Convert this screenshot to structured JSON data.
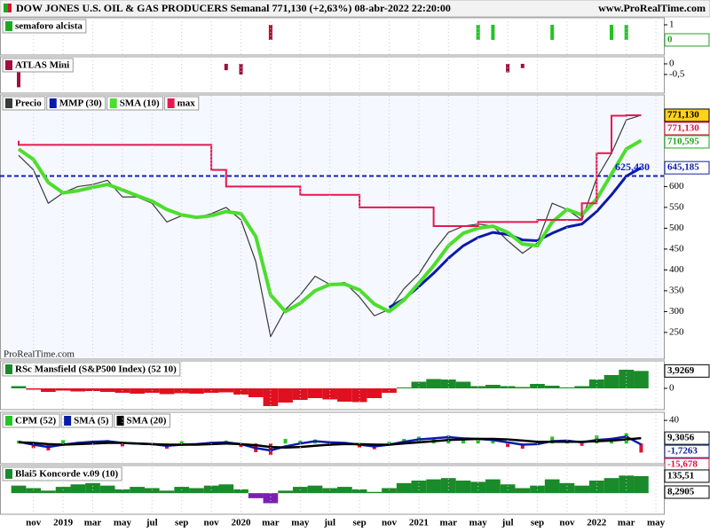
{
  "header": {
    "title": "DOW JONES U.S. OIL & GAS PRODUCERS Semanal 771,130 (+2,63%) 08-abr-2022 22:20:00",
    "site": "www.ProRealTime.com",
    "watermark": "ProRealTime.com"
  },
  "chart_data": [
    {
      "type": "bar",
      "ylim": [
        -1,
        1.47
      ],
      "yticks": [
        1
      ],
      "value_boxes": [
        {
          "value": 0,
          "color": "#22a022"
        }
      ],
      "series": [
        {
          "name": "semaforo alcista",
          "color": "#1aaa1a",
          "values": [
            null,
            null,
            null,
            null,
            null,
            null,
            null,
            null,
            null,
            null,
            null,
            null,
            null,
            null,
            null,
            null,
            null,
            1,
            null,
            null,
            null,
            null,
            null,
            null,
            null,
            null,
            null,
            null,
            null,
            null,
            null,
            1,
            1,
            null,
            null,
            null,
            1,
            null,
            null,
            null,
            1,
            1,
            null,
            null
          ],
          "colors": [
            null,
            null,
            null,
            null,
            null,
            null,
            null,
            null,
            null,
            null,
            null,
            null,
            null,
            null,
            null,
            null,
            null,
            "#b0102a",
            null,
            null,
            null,
            null,
            null,
            null,
            null,
            null,
            null,
            null,
            null,
            null,
            null,
            "#22c422",
            "#22c422",
            null,
            null,
            null,
            "#22c422",
            null,
            null,
            null,
            "#22c422",
            "#22c422",
            null,
            null
          ]
        }
      ]
    },
    {
      "type": "bar",
      "ylim": [
        -1.375,
        0.333
      ],
      "yticks": [
        0,
        {
          "value": -0.5,
          "label": "-0,5"
        }
      ],
      "series": [
        {
          "name": "ATLAS Mini",
          "color": "#a0103a",
          "values": [
            -1.1,
            -0.4,
            null,
            null,
            null,
            null,
            null,
            null,
            null,
            null,
            null,
            null,
            null,
            null,
            -0.3,
            -0.5,
            null,
            null,
            null,
            null,
            null,
            null,
            null,
            null,
            null,
            null,
            null,
            null,
            null,
            null,
            null,
            null,
            null,
            -0.4,
            -0.2,
            null,
            null,
            null,
            null,
            null,
            null,
            null,
            null,
            null
          ]
        }
      ]
    },
    {
      "type": "line",
      "ylim": [
        186,
        820
      ],
      "yticks": [
        250,
        300,
        350,
        400,
        450,
        500,
        550,
        600
      ],
      "categories": [
        null,
        "nov",
        null,
        "2019",
        null,
        "mar",
        null,
        "may",
        null,
        "jul",
        null,
        "sep",
        null,
        "nov",
        null,
        "2020",
        null,
        "mar",
        null,
        "may",
        null,
        "jul",
        null,
        "sep",
        null,
        "nov",
        null,
        "2021",
        null,
        "mar",
        null,
        "may",
        null,
        "jul",
        null,
        "sep",
        null,
        "nov",
        null,
        "2022",
        null,
        "mar",
        null,
        "may"
      ],
      "hline": {
        "value": 625.43,
        "label": "625,430",
        "color": "#1020c0"
      },
      "value_boxes": [
        {
          "value": 771.13,
          "label": "771,130",
          "color": "#000000",
          "bg": "#ffd21a"
        },
        {
          "value": 771.13,
          "label": "771,130",
          "color": "#e0103a"
        },
        {
          "value": 710.595,
          "label": "710,595",
          "color": "#18a818"
        },
        {
          "value": 645.185,
          "label": "645,185",
          "color": "#1020a0"
        }
      ],
      "series": [
        {
          "name": "Precio",
          "color": "#3a3a3a",
          "values": [
            675,
            640,
            560,
            585,
            600,
            605,
            615,
            575,
            575,
            560,
            515,
            530,
            525,
            535,
            550,
            520,
            420,
            240,
            305,
            340,
            385,
            365,
            370,
            335,
            290,
            305,
            355,
            390,
            445,
            490,
            505,
            510,
            505,
            470,
            440,
            465,
            560,
            545,
            520,
            620,
            680,
            760,
            771.13,
            null
          ]
        },
        {
          "name": "MMP (30)",
          "color": "#0a1aa8",
          "values": [
            null,
            null,
            null,
            null,
            null,
            null,
            null,
            null,
            null,
            null,
            null,
            null,
            null,
            null,
            null,
            null,
            null,
            null,
            null,
            null,
            null,
            null,
            null,
            null,
            null,
            310,
            330,
            360,
            392,
            428,
            458,
            478,
            490,
            485,
            472,
            470,
            488,
            503,
            510,
            540,
            580,
            625,
            645.185,
            null
          ]
        },
        {
          "name": "SMA (10)",
          "color": "#4ddd2e",
          "values": [
            690,
            665,
            610,
            585,
            590,
            598,
            605,
            592,
            578,
            565,
            545,
            532,
            526,
            530,
            540,
            535,
            480,
            340,
            300,
            320,
            350,
            365,
            366,
            352,
            318,
            300,
            328,
            368,
            410,
            458,
            488,
            500,
            505,
            490,
            462,
            458,
            515,
            545,
            532,
            570,
            630,
            690,
            710.595,
            null
          ]
        },
        {
          "name": "max",
          "type": "step",
          "color": "#e8174f",
          "values": [
            710,
            700,
            700,
            700,
            700,
            700,
            700,
            700,
            700,
            700,
            700,
            700,
            700,
            700,
            640,
            600,
            600,
            600,
            600,
            600,
            580,
            580,
            580,
            580,
            550,
            550,
            550,
            550,
            550,
            505,
            505,
            505,
            515,
            515,
            515,
            515,
            520,
            520,
            520,
            560,
            680,
            770,
            771.13,
            null
          ]
        }
      ]
    },
    {
      "type": "area",
      "ylim": [
        -4.8,
        6.2
      ],
      "yticks": [
        0
      ],
      "value_boxes": [
        {
          "value": 3.9269,
          "label": "3,9269",
          "color": "#000000"
        }
      ],
      "series": [
        {
          "name": "RSc Mansfield (S&P500 Index) (52 10)",
          "color": "#1a8a2a",
          "negative_color": "#e01020",
          "values": [
            0.5,
            -0.3,
            -0.8,
            -0.5,
            -0.7,
            -0.6,
            -0.8,
            -1,
            -1.2,
            -1,
            -1.3,
            -1.1,
            -1.2,
            -1,
            -0.9,
            -1.4,
            -2,
            -4,
            -3.2,
            -2.6,
            -2.2,
            -2.5,
            -3,
            -3.1,
            -2.2,
            -1,
            0.2,
            1.5,
            2.1,
            2,
            1.5,
            0.5,
            0.8,
            0.5,
            0.3,
            1,
            0.6,
            0.2,
            0.5,
            2,
            3,
            4.2,
            3.9269,
            null
          ]
        }
      ]
    },
    {
      "type": "bar",
      "ylim": [
        -35,
        54
      ],
      "yticks": [
        40
      ],
      "value_boxes": [
        {
          "value": 9.3056,
          "label": "9,3056",
          "color": "#000000"
        },
        {
          "value": -1.7263,
          "label": "-1,7263",
          "color": "#1020a0"
        },
        {
          "value": -15.678,
          "label": "-15,678",
          "color": "#e0103a"
        }
      ],
      "series": [
        {
          "name": "CPM (52)",
          "color": "#22c422",
          "negative_color": "#e01030",
          "values": [
            5,
            -8,
            -12,
            6,
            3,
            4,
            6,
            -5,
            2,
            -3,
            -9,
            4,
            -2,
            3,
            5,
            -6,
            -15,
            -20,
            8,
            5,
            7,
            -4,
            2,
            -7,
            -10,
            3,
            8,
            12,
            10,
            14,
            6,
            8,
            5,
            -6,
            -9,
            4,
            12,
            3,
            -4,
            14,
            10,
            18,
            -15.678,
            null
          ]
        },
        {
          "name": "SMA (5)",
          "type": "line",
          "color": "#0a1aa8",
          "values": [
            3,
            -2,
            -6,
            -2,
            1,
            3,
            4,
            1,
            0,
            -1,
            -4,
            -2,
            -1,
            1,
            2,
            -1,
            -8,
            -12,
            -5,
            0,
            4,
            2,
            1,
            -2,
            -5,
            -2,
            3,
            7,
            9,
            11,
            9,
            8,
            6,
            2,
            -2,
            -1,
            4,
            5,
            2,
            6,
            8,
            12,
            -1.7263,
            null
          ]
        },
        {
          "name": "SMA (20)",
          "type": "line",
          "color": "#000000",
          "values": [
            2,
            1,
            -1,
            -2,
            -1,
            0,
            1,
            1,
            0,
            -1,
            -2,
            -2,
            -2,
            -1,
            0,
            -1,
            -3,
            -6,
            -7,
            -6,
            -4,
            -2,
            -1,
            -1,
            -2,
            -2,
            0,
            2,
            4,
            6,
            7,
            8,
            8,
            7,
            5,
            3,
            3,
            3,
            3,
            4,
            5,
            7,
            9.3056,
            null
          ]
        }
      ]
    },
    {
      "type": "area",
      "ylim": [
        -168,
        220
      ],
      "value_boxes": [
        {
          "value": 135.51,
          "label": "135,51",
          "color": "#000000"
        },
        {
          "value": 8.2905,
          "label": "8,2905",
          "color": "#000000"
        }
      ],
      "series": [
        {
          "name": "Blai5 Koncorde v.09 (10)",
          "color": "#1a8a2a",
          "negative_color": "#7a20b0",
          "values": [
            60,
            40,
            20,
            50,
            70,
            80,
            60,
            30,
            50,
            40,
            20,
            50,
            40,
            60,
            70,
            30,
            -40,
            -80,
            20,
            50,
            60,
            40,
            50,
            30,
            10,
            40,
            80,
            100,
            110,
            120,
            100,
            90,
            110,
            70,
            40,
            60,
            110,
            80,
            60,
            100,
            120,
            140,
            135.51,
            null
          ]
        }
      ]
    }
  ]
}
